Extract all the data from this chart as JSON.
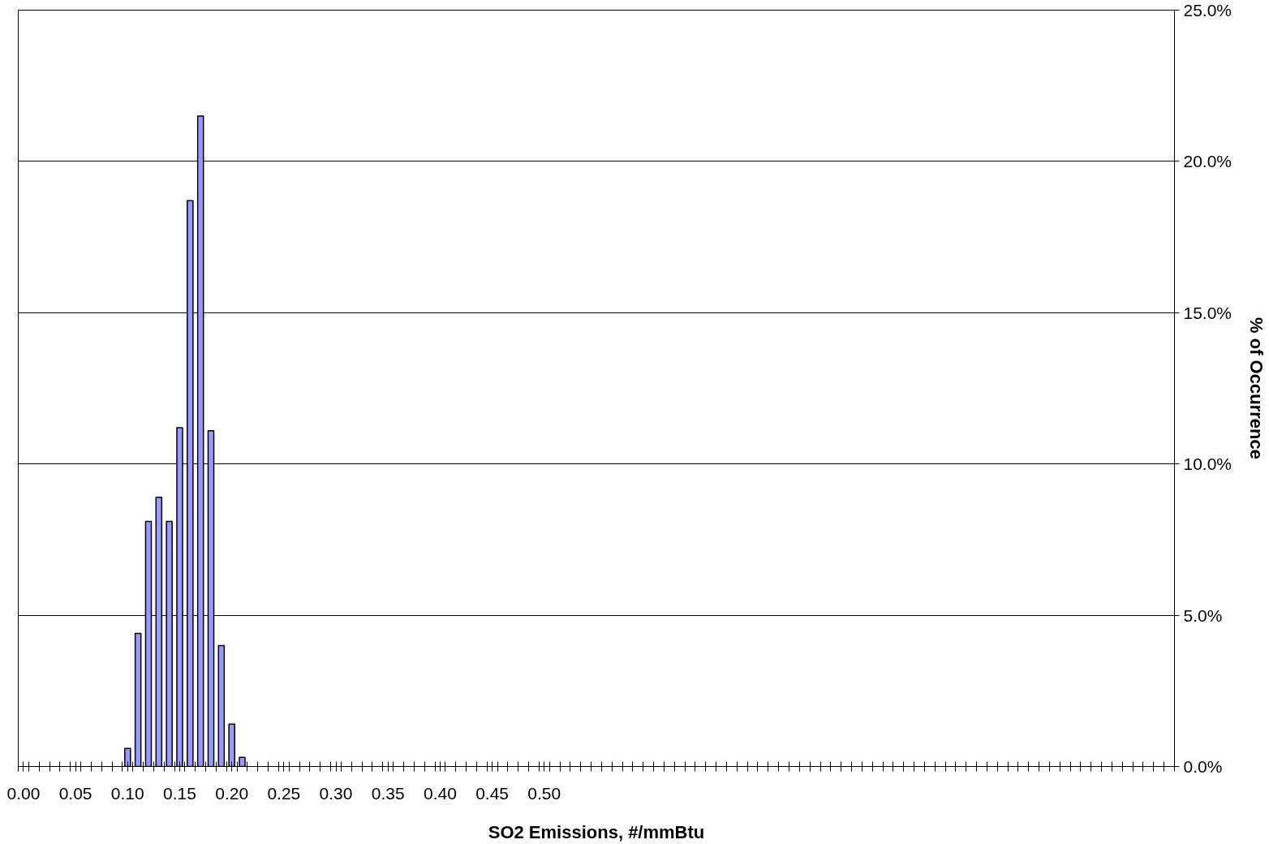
{
  "chart_data": {
    "type": "bar",
    "xlabel": "SO2 Emissions, #/mmBtu",
    "ylabel": "% of Occurrence",
    "x": [
      0.1,
      0.11,
      0.12,
      0.13,
      0.14,
      0.15,
      0.16,
      0.17,
      0.18,
      0.19,
      0.2,
      0.21
    ],
    "values": [
      0.6,
      4.4,
      8.1,
      8.9,
      8.1,
      11.2,
      18.7,
      21.5,
      11.1,
      4.0,
      1.4,
      0.3
    ],
    "color": "#9999ff",
    "xlim": [
      -0.005,
      1.105
    ],
    "xticks": [
      {
        "value": 0.0,
        "label": "0.00"
      },
      {
        "value": 0.05,
        "label": "0.05"
      },
      {
        "value": 0.1,
        "label": "0.10"
      },
      {
        "value": 0.15,
        "label": "0.15"
      },
      {
        "value": 0.2,
        "label": "0.20"
      },
      {
        "value": 0.25,
        "label": "0.25"
      },
      {
        "value": 0.3,
        "label": "0.30"
      },
      {
        "value": 0.35,
        "label": "0.35"
      },
      {
        "value": 0.4,
        "label": "0.40"
      },
      {
        "value": 0.45,
        "label": "0.45"
      },
      {
        "value": 0.5,
        "label": "0.50"
      },
      {
        "value": -0.005,
        "label": null
      },
      {
        "value": 0.005,
        "label": null
      },
      {
        "value": 0.015,
        "label": null
      },
      {
        "value": 0.025,
        "label": null
      },
      {
        "value": 0.035,
        "label": null
      },
      {
        "value": 0.045,
        "label": null
      },
      {
        "value": 0.055,
        "label": null
      },
      {
        "value": 0.065,
        "label": null
      },
      {
        "value": 0.075,
        "label": null
      },
      {
        "value": 0.085,
        "label": null
      },
      {
        "value": 0.095,
        "label": null
      },
      {
        "value": 0.105,
        "label": null
      },
      {
        "value": 0.115,
        "label": null
      },
      {
        "value": 0.125,
        "label": null
      },
      {
        "value": 0.135,
        "label": null
      },
      {
        "value": 0.145,
        "label": null
      },
      {
        "value": 0.155,
        "label": null
      },
      {
        "value": 0.165,
        "label": null
      },
      {
        "value": 0.175,
        "label": null
      },
      {
        "value": 0.185,
        "label": null
      },
      {
        "value": 0.195,
        "label": null
      },
      {
        "value": 0.205,
        "label": null
      },
      {
        "value": 0.215,
        "label": null
      },
      {
        "value": 0.225,
        "label": null
      },
      {
        "value": 0.235,
        "label": null
      },
      {
        "value": 0.245,
        "label": null
      },
      {
        "value": 0.255,
        "label": null
      },
      {
        "value": 0.265,
        "label": null
      },
      {
        "value": 0.275,
        "label": null
      },
      {
        "value": 0.285,
        "label": null
      },
      {
        "value": 0.295,
        "label": null
      },
      {
        "value": 0.305,
        "label": null
      },
      {
        "value": 0.315,
        "label": null
      },
      {
        "value": 0.325,
        "label": null
      },
      {
        "value": 0.335,
        "label": null
      },
      {
        "value": 0.345,
        "label": null
      },
      {
        "value": 0.355,
        "label": null
      },
      {
        "value": 0.365,
        "label": null
      },
      {
        "value": 0.375,
        "label": null
      },
      {
        "value": 0.385,
        "label": null
      },
      {
        "value": 0.395,
        "label": null
      },
      {
        "value": 0.405,
        "label": null
      },
      {
        "value": 0.415,
        "label": null
      },
      {
        "value": 0.425,
        "label": null
      },
      {
        "value": 0.435,
        "label": null
      },
      {
        "value": 0.445,
        "label": null
      },
      {
        "value": 0.455,
        "label": null
      },
      {
        "value": 0.465,
        "label": null
      },
      {
        "value": 0.475,
        "label": null
      },
      {
        "value": 0.485,
        "label": null
      },
      {
        "value": 0.495,
        "label": null
      },
      {
        "value": 0.505,
        "label": null
      },
      {
        "value": 0.515,
        "label": null
      },
      {
        "value": 0.525,
        "label": null
      },
      {
        "value": 0.535,
        "label": null
      },
      {
        "value": 0.545,
        "label": null
      },
      {
        "value": 0.555,
        "label": null
      },
      {
        "value": 0.565,
        "label": null
      },
      {
        "value": 0.575,
        "label": null
      },
      {
        "value": 0.585,
        "label": null
      },
      {
        "value": 0.595,
        "label": null
      },
      {
        "value": 0.605,
        "label": null
      },
      {
        "value": 0.615,
        "label": null
      },
      {
        "value": 0.625,
        "label": null
      },
      {
        "value": 0.635,
        "label": null
      },
      {
        "value": 0.645,
        "label": null
      },
      {
        "value": 0.655,
        "label": null
      },
      {
        "value": 0.665,
        "label": null
      },
      {
        "value": 0.675,
        "label": null
      },
      {
        "value": 0.685,
        "label": null
      },
      {
        "value": 0.695,
        "label": null
      },
      {
        "value": 0.705,
        "label": null
      },
      {
        "value": 0.715,
        "label": null
      },
      {
        "value": 0.725,
        "label": null
      },
      {
        "value": 0.735,
        "label": null
      },
      {
        "value": 0.745,
        "label": null
      },
      {
        "value": 0.755,
        "label": null
      },
      {
        "value": 0.765,
        "label": null
      },
      {
        "value": 0.775,
        "label": null
      },
      {
        "value": 0.785,
        "label": null
      },
      {
        "value": 0.795,
        "label": null
      },
      {
        "value": 0.805,
        "label": null
      },
      {
        "value": 0.815,
        "label": null
      },
      {
        "value": 0.825,
        "label": null
      },
      {
        "value": 0.835,
        "label": null
      },
      {
        "value": 0.845,
        "label": null
      },
      {
        "value": 0.855,
        "label": null
      },
      {
        "value": 0.865,
        "label": null
      },
      {
        "value": 0.875,
        "label": null
      },
      {
        "value": 0.885,
        "label": null
      },
      {
        "value": 0.895,
        "label": null
      },
      {
        "value": 0.905,
        "label": null
      },
      {
        "value": 0.915,
        "label": null
      },
      {
        "value": 0.925,
        "label": null
      },
      {
        "value": 0.935,
        "label": null
      },
      {
        "value": 0.945,
        "label": null
      },
      {
        "value": 0.955,
        "label": null
      },
      {
        "value": 0.965,
        "label": null
      },
      {
        "value": 0.975,
        "label": null
      },
      {
        "value": 0.985,
        "label": null
      },
      {
        "value": 0.995,
        "label": null
      },
      {
        "value": 1.005,
        "label": null
      },
      {
        "value": 1.015,
        "label": null
      },
      {
        "value": 1.025,
        "label": null
      },
      {
        "value": 1.035,
        "label": null
      },
      {
        "value": 1.045,
        "label": null
      },
      {
        "value": 1.055,
        "label": null
      },
      {
        "value": 1.065,
        "label": null
      },
      {
        "value": 1.075,
        "label": null
      },
      {
        "value": 1.085,
        "label": null
      },
      {
        "value": 1.095,
        "label": null
      },
      {
        "value": 1.105,
        "label": null
      }
    ],
    "ylim": [
      0,
      25
    ],
    "yticks": [
      {
        "value": 0,
        "label": "0.0%"
      },
      {
        "value": 5,
        "label": "5.0%"
      },
      {
        "value": 10,
        "label": "10.0%"
      },
      {
        "value": 15,
        "label": "15.0%"
      },
      {
        "value": 20,
        "label": "20.0%"
      },
      {
        "value": 25,
        "label": "25.0%"
      }
    ],
    "grid": "y"
  }
}
